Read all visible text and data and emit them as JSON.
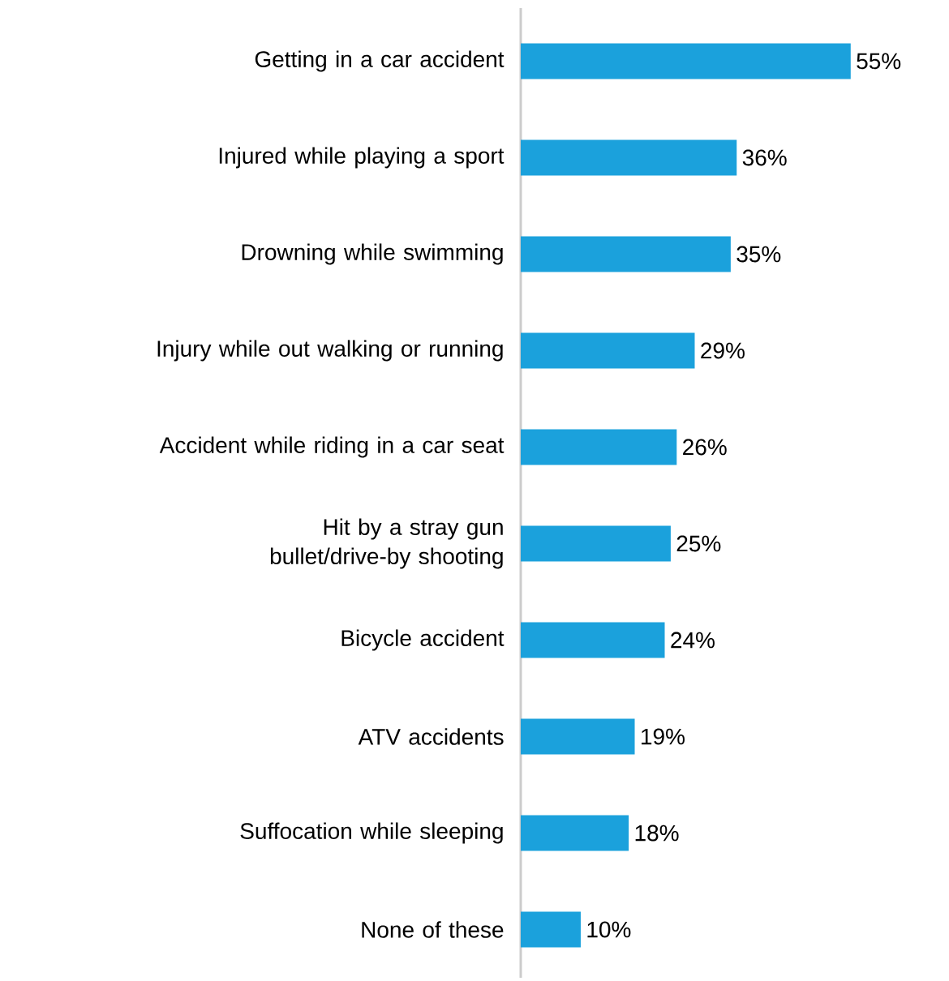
{
  "chart_data": {
    "type": "bar",
    "orientation": "horizontal",
    "categories": [
      "Getting in a car accident",
      "Injured while playing a sport",
      "Drowning while swimming",
      "Injury while out walking or running",
      "Accident while riding in a car seat",
      "Hit by a stray gun bullet/drive-by shooting",
      "Bicycle accident",
      "ATV accidents",
      "Suffocation while sleeping",
      "None of these"
    ],
    "values": [
      55,
      36,
      35,
      29,
      26,
      25,
      24,
      19,
      18,
      10
    ],
    "value_labels": [
      "55%",
      "36%",
      "35%",
      "29%",
      "26%",
      "25%",
      "24%",
      "19%",
      "18%",
      "10%"
    ],
    "color": "#1ba1dc"
  }
}
